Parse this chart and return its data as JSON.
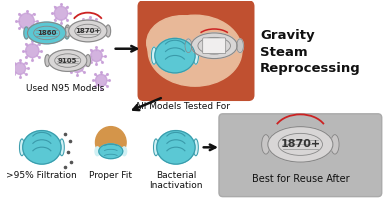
{
  "bg_color": "#ffffff",
  "title_text": "Gravity\nSteam\nReprocessing",
  "mask_1860_label": "1860",
  "mask_1870_label": "1870+",
  "mask_9105_label": "9105",
  "used_n95_label": "Used N95 Models",
  "all_models_label": "All Models Tested For",
  "filtration_label": ">95% Filtration",
  "fit_label": "Proper Fit",
  "bacterial_label": "Bacterial\nInactivation",
  "best_label": "Best for Reuse After",
  "best_mask_label": "1870+",
  "blue_mask_color": "#5bc8d4",
  "blue_mask_dark": "#3a9aaa",
  "grey_mask_color": "#d8d6d6",
  "grey_mask_dark": "#888888",
  "highlight_red": "#cc2222",
  "steam_box_outer": "#c05030",
  "steam_cloud": "#e8b898",
  "steam_cloud_dark": "#d49878",
  "virus_color": "#c8a0d8",
  "grey_bg": "#b8b8b8",
  "skin_color": "#d4954a",
  "skin_dark": "#b07030",
  "arrow_color": "#111111",
  "text_color": "#111111",
  "title_fontsize": 9.5,
  "label_fontsize": 6.5,
  "small_label_fontsize": 6.0
}
